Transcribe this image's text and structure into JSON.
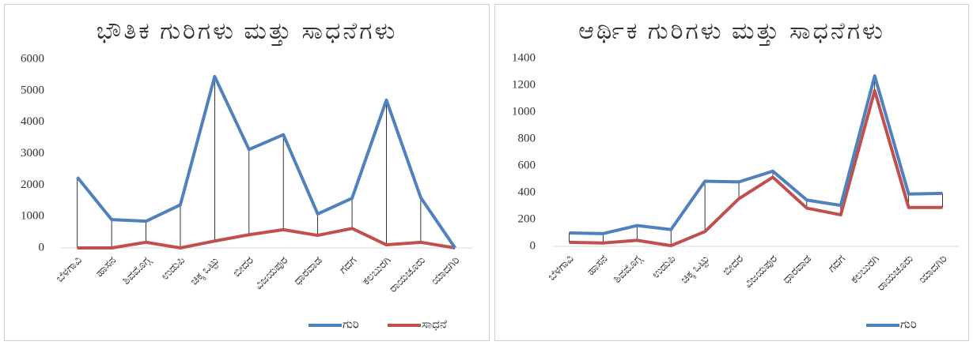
{
  "chart_data": [
    {
      "type": "line",
      "title": "ಭೌತಿಕ ಗುರಿಗಳು ಮತ್ತು ಸಾಧನೆಗಳು",
      "categories": [
        "ಬೆಳಗಾವಿ",
        "ಹಾಸನ",
        "ಶಿವಮೊಗ್ಗ",
        "ಉಡುಪಿ",
        "ಚಿಕ್ಕ ಒಟ್ಟು",
        "ಬೀದರ",
        "ವಿಜಯಪುರ",
        "ಧಾರವಾಡ",
        "ಗದಗ",
        "ಕಲಬುರಗಿ",
        "ರಾಯಚೂರು",
        "ಯಾದಗಿರಿ"
      ],
      "series": [
        {
          "name": "ಗುರಿ",
          "color": "#4f81bd",
          "values": [
            2250,
            900,
            850,
            1370,
            5450,
            3130,
            3600,
            1080,
            1580,
            4700,
            1600,
            0
          ]
        },
        {
          "name": "ಸಾಧನೆ",
          "color": "#c0504d",
          "values": [
            0,
            0,
            180,
            0,
            220,
            420,
            580,
            400,
            620,
            100,
            180,
            0
          ]
        }
      ],
      "ylim": [
        0,
        6000
      ],
      "yticks": [
        0,
        1000,
        2000,
        3000,
        4000,
        5000,
        6000
      ],
      "drop_lines": true,
      "legend": "bottom-right"
    },
    {
      "type": "line",
      "title": "ಆರ್ಥಿಕ ಗುರಿಗಳು ಮತ್ತು ಸಾಧನೆಗಳು",
      "categories": [
        "ಬೆಳಗಾವಿ",
        "ಹಾಸನ",
        "ಶಿವಮೊಗ್ಗ",
        "ಉಡುಪಿ",
        "ಚಿಕ್ಕ ಒಟ್ಟು",
        "ಬೀದರ",
        "ವಿಜಯಪುರ",
        "ಧಾರವಾಡ",
        "ಗದಗ",
        "ಕಲಬುರಗಿ",
        "ರಾಯಚೂರು",
        "ಯಾದಗಿರಿ"
      ],
      "series": [
        {
          "name": "ಗುರಿ",
          "color": "#4f81bd",
          "values": [
            100,
            95,
            155,
            125,
            485,
            480,
            560,
            345,
            305,
            1270,
            390,
            395
          ]
        },
        {
          "color": "#c0504d",
          "values": [
            30,
            25,
            45,
            5,
            110,
            355,
            515,
            285,
            235,
            1160,
            290,
            290
          ]
        }
      ],
      "ylim": [
        0,
        1400
      ],
      "yticks": [
        0,
        200,
        400,
        600,
        800,
        1000,
        1200,
        1400
      ],
      "drop_lines": true,
      "legend": "bottom-right"
    }
  ]
}
